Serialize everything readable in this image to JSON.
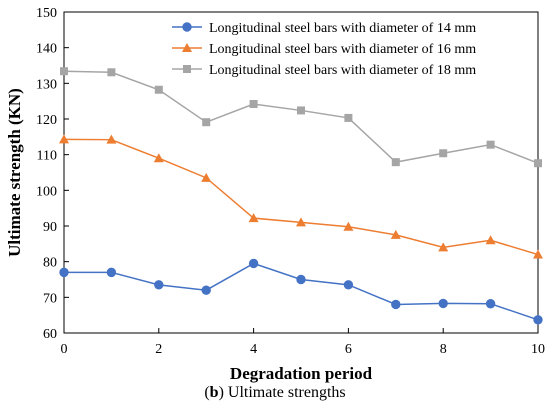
{
  "caption": {
    "prefix": "(",
    "letter": "b",
    "suffix": ") Ultimate strengths"
  },
  "chart_data": {
    "type": "line",
    "title": "",
    "xlabel": "Degradation period",
    "ylabel": "Ultimate strength (KN)",
    "xlim": [
      0,
      10
    ],
    "ylim": [
      60,
      150
    ],
    "xticks": [
      0,
      2,
      4,
      6,
      8,
      10
    ],
    "yticks": [
      60,
      70,
      80,
      90,
      100,
      110,
      120,
      130,
      140,
      150
    ],
    "grid": false,
    "legend_position": "top-right",
    "x": [
      0,
      1,
      2,
      3,
      4,
      5,
      6,
      7,
      8,
      9,
      10
    ],
    "series": [
      {
        "name": "Longitudinal steel bars with diameter of 14 mm",
        "marker": "circle",
        "color": "#4472C4",
        "values": [
          77,
          77,
          73.5,
          72,
          79.5,
          75,
          73.5,
          68,
          68.3,
          68.2,
          63.7
        ]
      },
      {
        "name": "Longitudinal steel bars with diameter of 16 mm",
        "marker": "triangle",
        "color": "#ED7D31",
        "values": [
          114.3,
          114.2,
          109,
          103.5,
          92.2,
          91,
          89.8,
          87.5,
          84,
          86,
          82
        ]
      },
      {
        "name": "Longitudinal steel bars with diameter of 18 mm",
        "marker": "square",
        "color": "#A5A5A5",
        "values": [
          133.4,
          133.1,
          128.2,
          119.1,
          124.2,
          122.4,
          120.3,
          107.9,
          110.4,
          112.8,
          107.6
        ]
      }
    ]
  }
}
